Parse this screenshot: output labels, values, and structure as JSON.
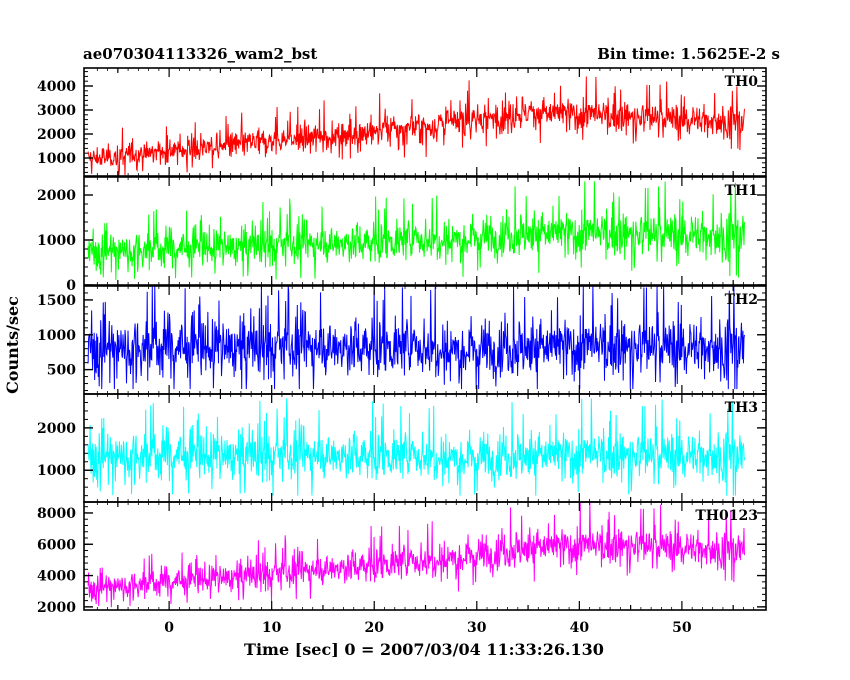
{
  "header": {
    "title": "ae070304113326_wam2_bst",
    "bin_time": "Bin time: 1.5625E-2 s"
  },
  "chart_data": {
    "type": "line",
    "ylabel": "Counts/sec",
    "xlabel": "Time [sec] 0 = 2007/03/04 11:33:26.130",
    "xlim": [
      -8.3,
      58.2
    ],
    "x_ticks": [
      0,
      10,
      20,
      30,
      40,
      50
    ],
    "x_range": [
      -7.9,
      56.1
    ],
    "panels": [
      {
        "name": "TH0",
        "color": "#ff0000",
        "ylim": [
          250,
          4750
        ],
        "ticks": [
          1000,
          2000,
          3000,
          4000
        ],
        "trend": [
          [
            -7.9,
            950
          ],
          [
            10,
            1700
          ],
          [
            25,
            2300
          ],
          [
            35,
            2900
          ],
          [
            45,
            2700
          ],
          [
            56,
            2500
          ]
        ],
        "spread": [
          [
            -7.9,
            550
          ],
          [
            30,
            800
          ],
          [
            56,
            750
          ]
        ],
        "peak": 4700,
        "floor": 280
      },
      {
        "name": "TH1",
        "color": "#00ff00",
        "ylim": [
          0,
          2400
        ],
        "ticks": [
          0,
          1000,
          2000
        ],
        "trend": [
          [
            -7.9,
            750
          ],
          [
            20,
            950
          ],
          [
            35,
            1150
          ],
          [
            56,
            1100
          ]
        ],
        "spread": [
          [
            -7.9,
            450
          ],
          [
            56,
            600
          ]
        ],
        "peak": 2400,
        "floor": 100
      },
      {
        "name": "TH2",
        "color": "#0000ff",
        "ylim": [
          150,
          1700
        ],
        "ticks": [
          500,
          1000,
          1500
        ],
        "trend": [
          [
            -7.9,
            820
          ],
          [
            56,
            820
          ]
        ],
        "spread": [
          [
            -7.9,
            480
          ],
          [
            56,
            480
          ]
        ],
        "peak": 1700,
        "floor": 220
      },
      {
        "name": "TH3",
        "color": "#00ffff",
        "ylim": [
          250,
          2800
        ],
        "ticks": [
          1000,
          2000
        ],
        "trend": [
          [
            -7.9,
            1350
          ],
          [
            56,
            1350
          ]
        ],
        "spread": [
          [
            -7.9,
            650
          ],
          [
            56,
            650
          ]
        ],
        "peak": 2800,
        "floor": 400
      },
      {
        "name": "TH0123",
        "color": "#ff00ff",
        "ylim": [
          1800,
          8700
        ],
        "ticks": [
          2000,
          4000,
          6000,
          8000
        ],
        "trend": [
          [
            -7.9,
            3200
          ],
          [
            10,
            4100
          ],
          [
            25,
            5000
          ],
          [
            35,
            5800
          ],
          [
            45,
            5900
          ],
          [
            56,
            5600
          ]
        ],
        "spread": [
          [
            -7.9,
            900
          ],
          [
            30,
            1400
          ],
          [
            56,
            1300
          ]
        ],
        "peak": 8700,
        "floor": 1900
      }
    ]
  }
}
